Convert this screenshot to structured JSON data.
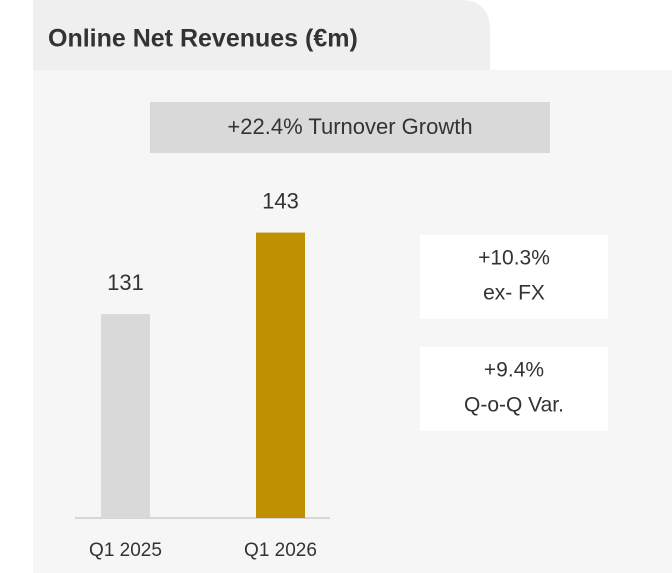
{
  "chart_data": {
    "type": "bar",
    "title": "Online Net Revenues (€m)",
    "headline": "+22.4% Turnover Growth",
    "categories": [
      "Q1 2025",
      "Q1 2026"
    ],
    "values": [
      131,
      143
    ],
    "colors": [
      "#d9d9d9",
      "#bf9000"
    ],
    "ylim": [
      101,
      150
    ],
    "callouts": [
      [
        "+10.3%",
        "ex- FX"
      ],
      [
        "+9.4%",
        "Q-o-Q Var."
      ]
    ]
  }
}
